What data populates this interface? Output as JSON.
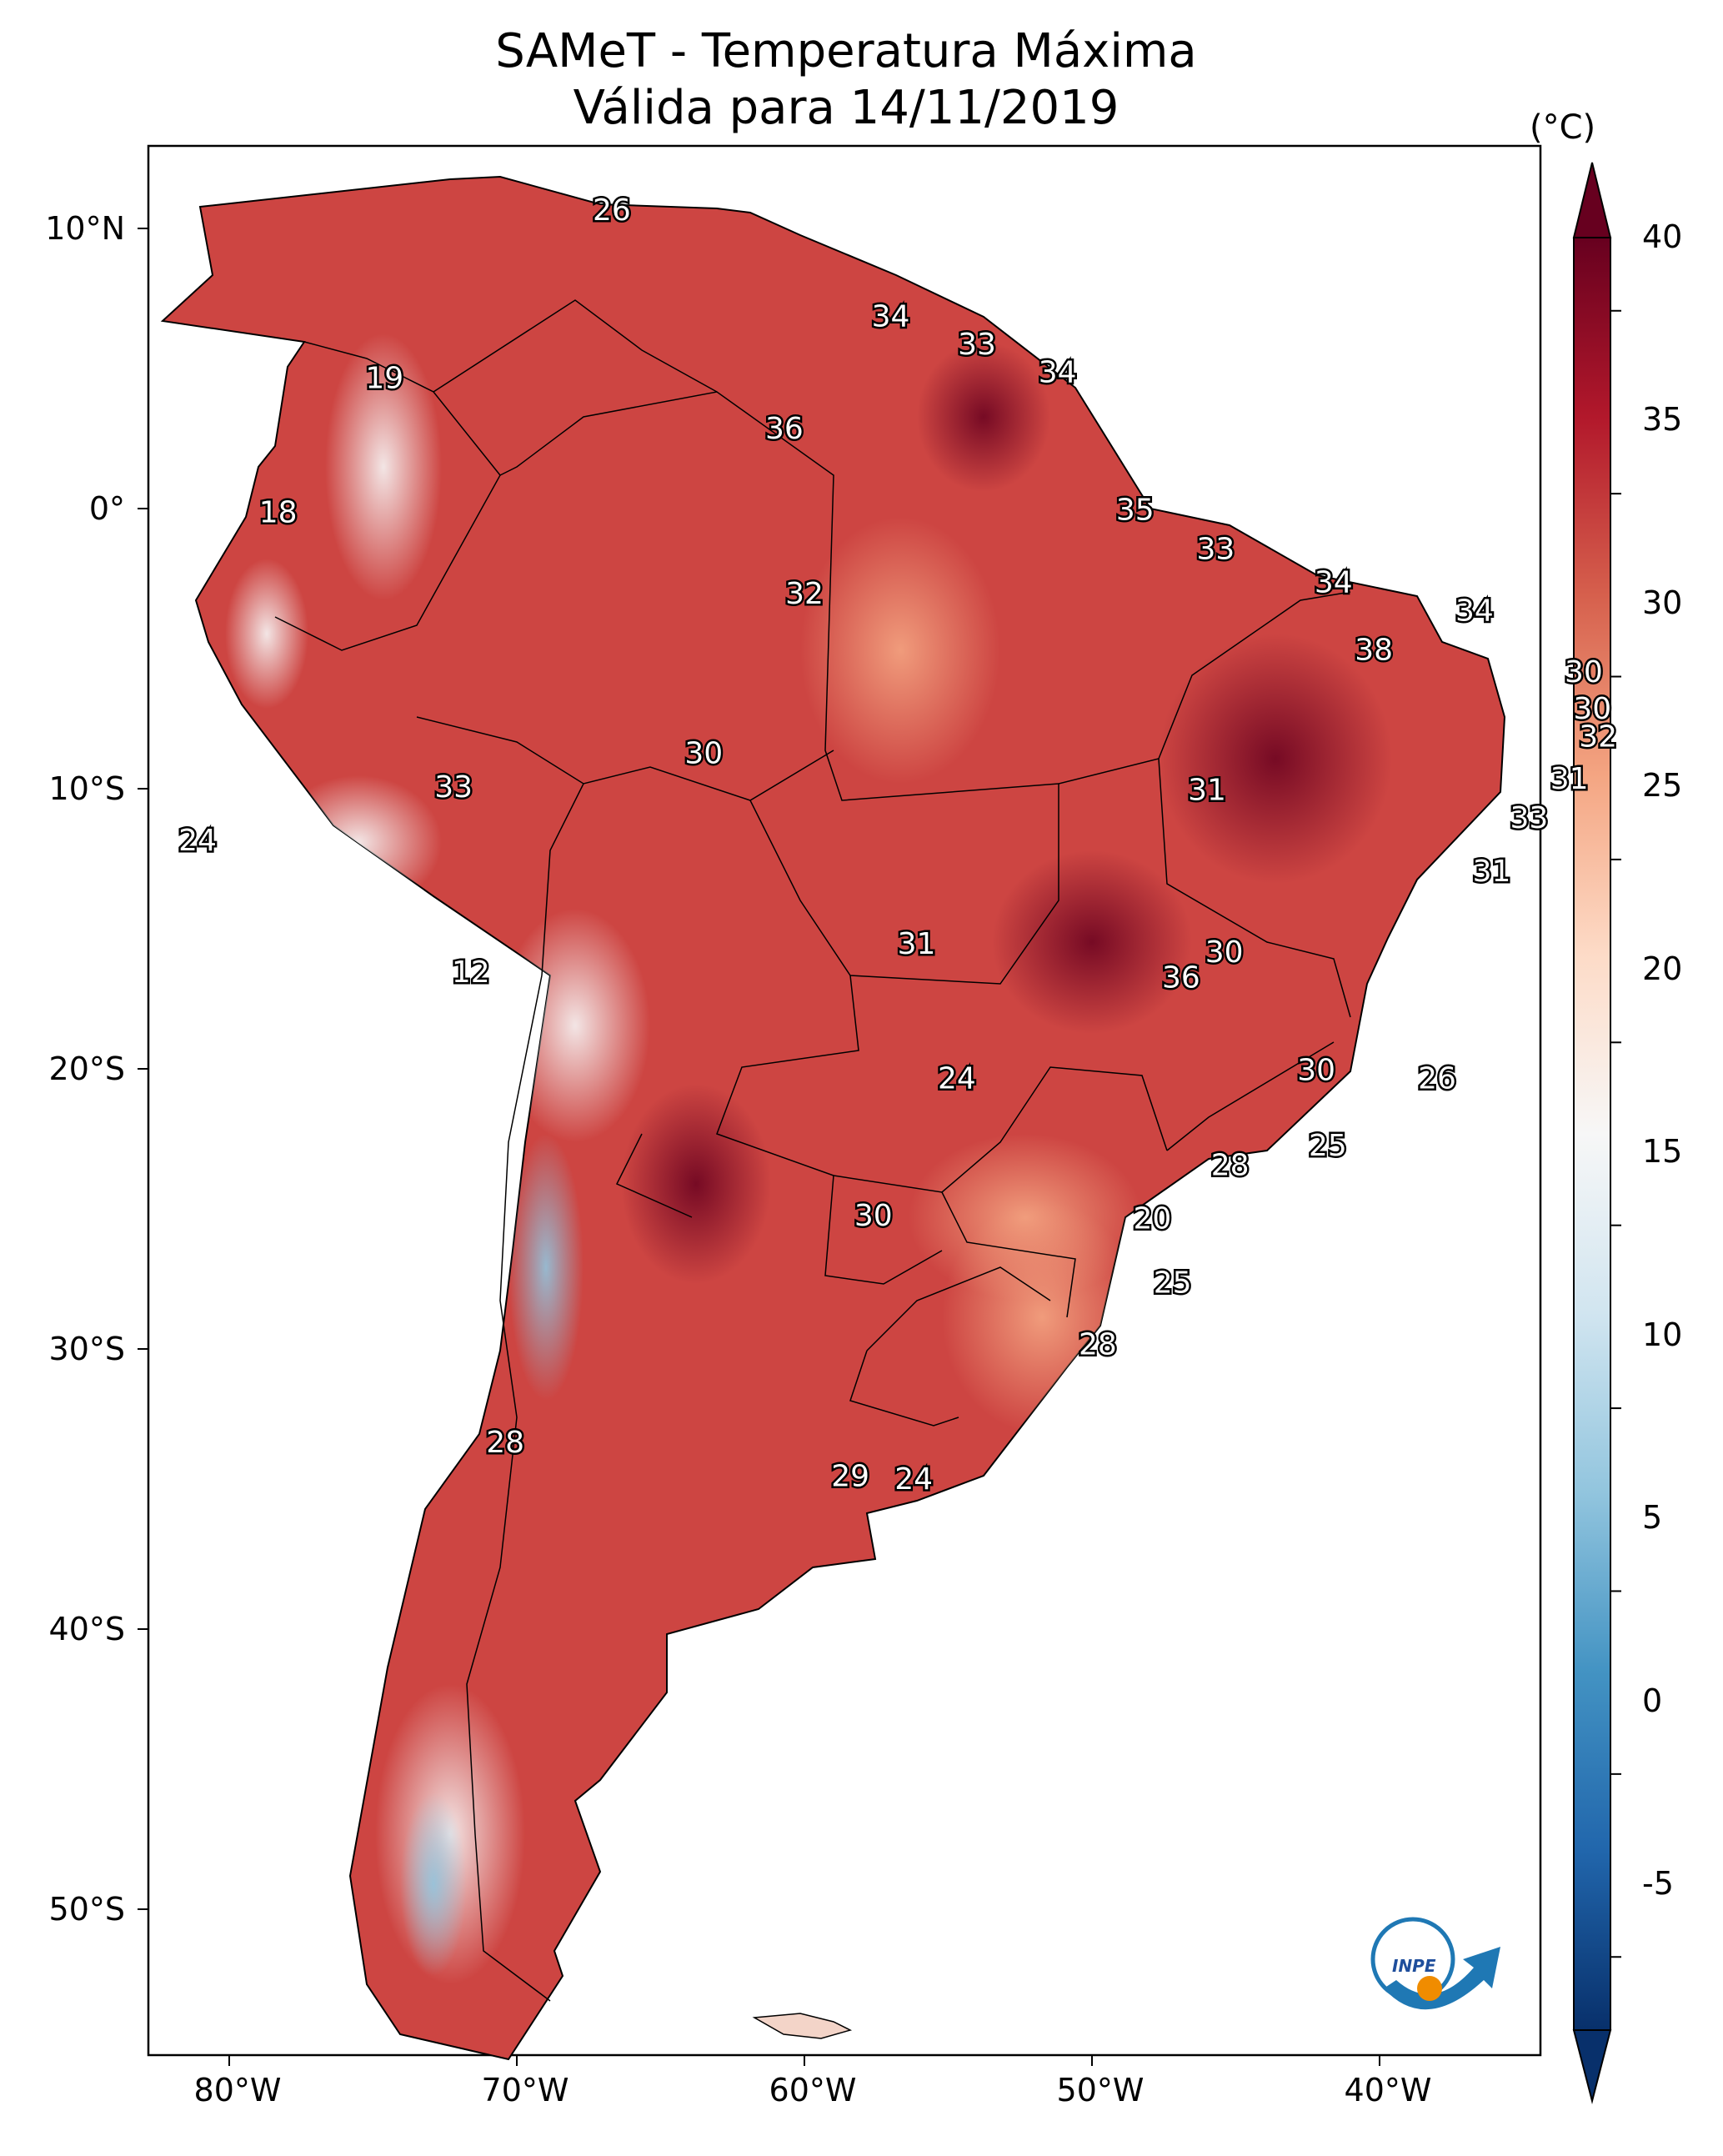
{
  "title": {
    "line1": "SAMeT - Temperatura Máxima",
    "line2": "Válida para 14/11/2019"
  },
  "colorbar": {
    "unit": "(°C)",
    "ticks": [
      "40",
      "35",
      "30",
      "25",
      "20",
      "15",
      "10",
      "5",
      "0",
      "-5"
    ],
    "min": -7,
    "max": 42,
    "colors": [
      "#08306b",
      "#2166ac",
      "#4393c3",
      "#92c5de",
      "#d1e5f0",
      "#f7f7f7",
      "#fddbc7",
      "#f4a582",
      "#d6604d",
      "#b2182b",
      "#67001f"
    ]
  },
  "axes": {
    "lat_ticks": [
      "10°N",
      "0°",
      "10°S",
      "20°S",
      "30°S",
      "40°S",
      "50°S"
    ],
    "lon_ticks": [
      "80°W",
      "70°W",
      "60°W",
      "50°W",
      "40°W"
    ]
  },
  "stations": [
    {
      "value": "26",
      "lon": -66.7,
      "lat": 10.6
    },
    {
      "value": "19",
      "lon": -74.6,
      "lat": 4.6
    },
    {
      "value": "18",
      "lon": -78.3,
      "lat": -0.2
    },
    {
      "value": "34",
      "lon": -57.0,
      "lat": 6.8
    },
    {
      "value": "33",
      "lon": -54.0,
      "lat": 5.8
    },
    {
      "value": "34",
      "lon": -51.2,
      "lat": 4.8
    },
    {
      "value": "36",
      "lon": -60.7,
      "lat": 2.8
    },
    {
      "value": "35",
      "lon": -48.5,
      "lat": -0.1
    },
    {
      "value": "32",
      "lon": -60.0,
      "lat": -3.1
    },
    {
      "value": "33",
      "lon": -45.7,
      "lat": -1.5
    },
    {
      "value": "34",
      "lon": -41.6,
      "lat": -2.7
    },
    {
      "value": "34",
      "lon": -36.7,
      "lat": -3.7
    },
    {
      "value": "38",
      "lon": -40.2,
      "lat": -5.1
    },
    {
      "value": "30",
      "lon": -32.9,
      "lat": -5.9
    },
    {
      "value": "30",
      "lon": -32.6,
      "lat": -7.2
    },
    {
      "value": "32",
      "lon": -32.4,
      "lat": -8.2
    },
    {
      "value": "30",
      "lon": -63.5,
      "lat": -8.8
    },
    {
      "value": "33",
      "lon": -72.2,
      "lat": -10.0
    },
    {
      "value": "31",
      "lon": -46.0,
      "lat": -10.1
    },
    {
      "value": "31",
      "lon": -33.4,
      "lat": -9.7
    },
    {
      "value": "33",
      "lon": -34.8,
      "lat": -11.1
    },
    {
      "value": "24",
      "lon": -81.1,
      "lat": -11.9
    },
    {
      "value": "31",
      "lon": -36.1,
      "lat": -13.0
    },
    {
      "value": "31",
      "lon": -56.1,
      "lat": -15.6
    },
    {
      "value": "30",
      "lon": -45.4,
      "lat": -15.9
    },
    {
      "value": "36",
      "lon": -46.9,
      "lat": -16.8
    },
    {
      "value": "12",
      "lon": -71.6,
      "lat": -16.6
    },
    {
      "value": "24",
      "lon": -54.7,
      "lat": -20.4
    },
    {
      "value": "30",
      "lon": -42.2,
      "lat": -20.1
    },
    {
      "value": "26",
      "lon": -38.0,
      "lat": -20.4
    },
    {
      "value": "25",
      "lon": -41.8,
      "lat": -22.8
    },
    {
      "value": "28",
      "lon": -45.2,
      "lat": -23.5
    },
    {
      "value": "30",
      "lon": -57.6,
      "lat": -25.3
    },
    {
      "value": "20",
      "lon": -47.9,
      "lat": -25.4
    },
    {
      "value": "25",
      "lon": -47.2,
      "lat": -27.7
    },
    {
      "value": "28",
      "lon": -49.8,
      "lat": -29.9
    },
    {
      "value": "28",
      "lon": -70.4,
      "lat": -33.4
    },
    {
      "value": "29",
      "lon": -58.4,
      "lat": -34.6
    },
    {
      "value": "24",
      "lon": -56.2,
      "lat": -34.7
    }
  ]
}
